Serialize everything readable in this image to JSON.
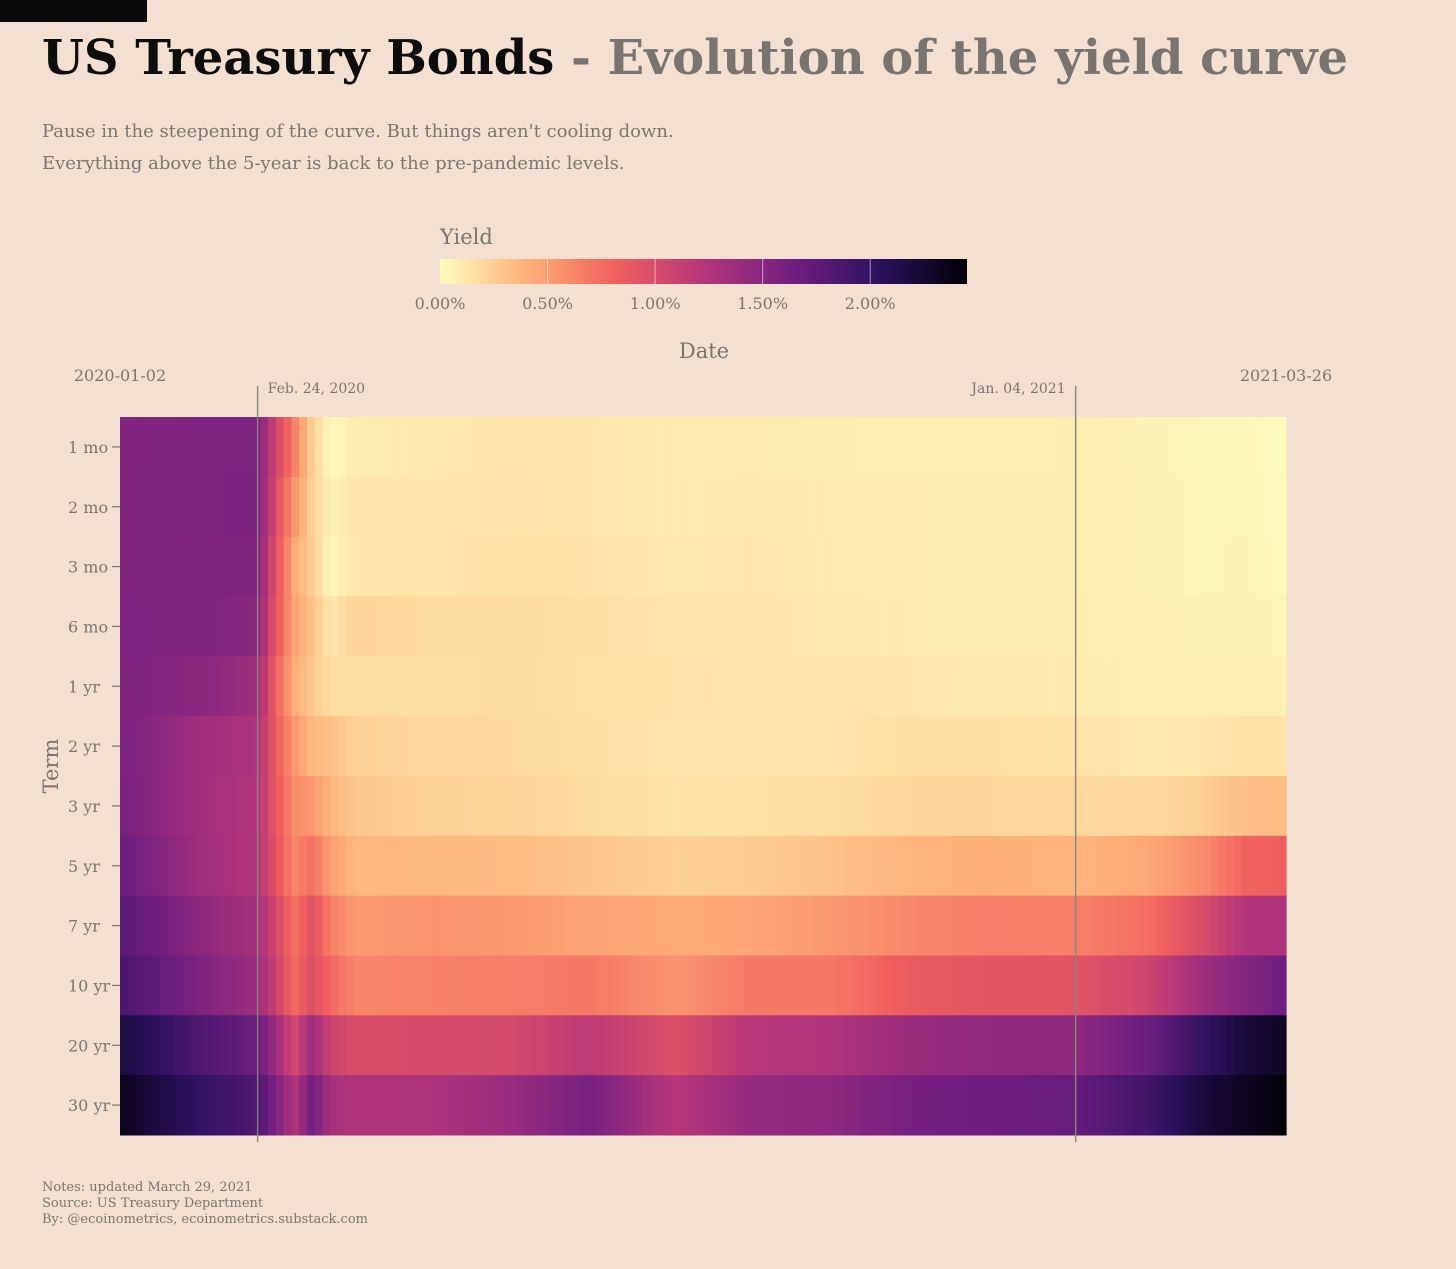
{
  "header": {
    "title_main": "US Treasury Bonds",
    "title_separator": "-",
    "title_sub": "Evolution of the yield curve",
    "subtitle_lines": [
      "Pause in the steepening of the curve. But things aren't cooling down.",
      "Everything above the 5-year is back to the pre-pandemic levels."
    ]
  },
  "chart_data": {
    "type": "heatmap",
    "title": "US Treasury Bonds - Evolution of the yield curve",
    "xlabel": "Date",
    "ylabel": "Term",
    "legend": {
      "title": "Yield",
      "placement": "top",
      "ticks": [
        "0.00%",
        "0.50%",
        "1.00%",
        "1.50%",
        "2.00%"
      ],
      "range": [
        0,
        2.45
      ]
    },
    "colorscale": [
      "#fcfdbf",
      "#feb078",
      "#f1605d",
      "#b63679",
      "#721f81",
      "#2c115f",
      "#000004"
    ],
    "x_range": [
      "2020-01-02",
      "2021-03-26"
    ],
    "x_labels": [
      "2020-01-02",
      "2021-03-26"
    ],
    "annotations": [
      {
        "label": "Feb. 24, 2020",
        "date": "2020-02-24"
      },
      {
        "label": "Jan. 04, 2021",
        "date": "2021-01-04"
      }
    ],
    "terms": [
      "1 mo",
      "2 mo",
      "3 mo",
      "6 mo",
      "1 yr",
      "2 yr",
      "3 yr",
      "5 yr",
      "7 yr",
      "10 yr",
      "20 yr",
      "30 yr"
    ],
    "dates": [
      "2020-01-02",
      "2020-02-03",
      "2020-02-24",
      "2020-03-02",
      "2020-03-09",
      "2020-03-16",
      "2020-03-23",
      "2020-04-01",
      "2020-05-01",
      "2020-06-01",
      "2020-07-01",
      "2020-08-03",
      "2020-09-01",
      "2020-10-01",
      "2020-11-02",
      "2020-12-01",
      "2021-01-04",
      "2021-02-01",
      "2021-02-22",
      "2021-03-10",
      "2021-03-26"
    ],
    "yields": [
      [
        1.53,
        1.56,
        1.57,
        1.07,
        0.66,
        0.24,
        0.02,
        0.09,
        0.11,
        0.13,
        0.12,
        0.1,
        0.1,
        0.09,
        0.08,
        0.08,
        0.09,
        0.05,
        0.04,
        0.04,
        0.01
      ],
      [
        1.55,
        1.56,
        1.58,
        1.0,
        0.55,
        0.23,
        0.06,
        0.12,
        0.12,
        0.14,
        0.12,
        0.1,
        0.11,
        0.1,
        0.1,
        0.09,
        0.09,
        0.06,
        0.04,
        0.04,
        0.02
      ],
      [
        1.54,
        1.56,
        1.53,
        0.95,
        0.44,
        0.25,
        0.04,
        0.12,
        0.13,
        0.15,
        0.14,
        0.11,
        0.12,
        0.1,
        0.1,
        0.09,
        0.09,
        0.06,
        0.04,
        0.05,
        0.02
      ],
      [
        1.57,
        1.55,
        1.49,
        0.9,
        0.47,
        0.31,
        0.12,
        0.22,
        0.18,
        0.18,
        0.16,
        0.13,
        0.13,
        0.11,
        0.1,
        0.09,
        0.09,
        0.07,
        0.06,
        0.06,
        0.04
      ],
      [
        1.56,
        1.48,
        1.37,
        0.82,
        0.43,
        0.28,
        0.17,
        0.17,
        0.16,
        0.18,
        0.15,
        0.14,
        0.13,
        0.13,
        0.12,
        0.11,
        0.1,
        0.08,
        0.08,
        0.08,
        0.07
      ],
      [
        1.58,
        1.35,
        1.28,
        0.85,
        0.54,
        0.36,
        0.32,
        0.23,
        0.2,
        0.19,
        0.16,
        0.13,
        0.13,
        0.13,
        0.16,
        0.16,
        0.14,
        0.11,
        0.12,
        0.15,
        0.14
      ],
      [
        1.59,
        1.34,
        1.25,
        0.88,
        0.59,
        0.53,
        0.38,
        0.29,
        0.23,
        0.22,
        0.18,
        0.14,
        0.15,
        0.17,
        0.21,
        0.21,
        0.2,
        0.19,
        0.24,
        0.33,
        0.35
      ],
      [
        1.67,
        1.35,
        1.24,
        0.92,
        0.62,
        0.73,
        0.5,
        0.37,
        0.36,
        0.35,
        0.29,
        0.24,
        0.26,
        0.31,
        0.38,
        0.41,
        0.38,
        0.45,
        0.59,
        0.8,
        0.84
      ],
      [
        1.79,
        1.46,
        1.33,
        1.04,
        0.73,
        0.95,
        0.66,
        0.52,
        0.55,
        0.53,
        0.47,
        0.44,
        0.46,
        0.53,
        0.61,
        0.67,
        0.65,
        0.75,
        1.0,
        1.25,
        1.28
      ],
      [
        1.88,
        1.54,
        1.38,
        1.1,
        0.76,
        0.98,
        0.78,
        0.62,
        0.64,
        0.66,
        0.69,
        0.55,
        0.69,
        0.69,
        0.87,
        0.92,
        0.93,
        1.07,
        1.37,
        1.52,
        1.67
      ],
      [
        2.19,
        1.83,
        1.68,
        1.38,
        1.03,
        1.39,
        1.1,
        1.0,
        1.01,
        1.03,
        1.18,
        0.97,
        1.22,
        1.26,
        1.4,
        1.45,
        1.46,
        1.68,
        2.0,
        2.21,
        2.31
      ],
      [
        2.33,
        2.0,
        1.84,
        1.56,
        1.25,
        1.63,
        1.33,
        1.27,
        1.28,
        1.41,
        1.6,
        1.22,
        1.43,
        1.47,
        1.61,
        1.65,
        1.7,
        1.92,
        2.2,
        2.33,
        2.43
      ]
    ]
  },
  "notes": [
    "Notes: updated March 29, 2021",
    "Source: US Treasury Department",
    "By: @ecoinometrics, ecoinometrics.substack.com"
  ],
  "colors": {
    "background": "#f3e0d0",
    "text_muted": "#7b7672",
    "title": "#0d0d0d"
  }
}
